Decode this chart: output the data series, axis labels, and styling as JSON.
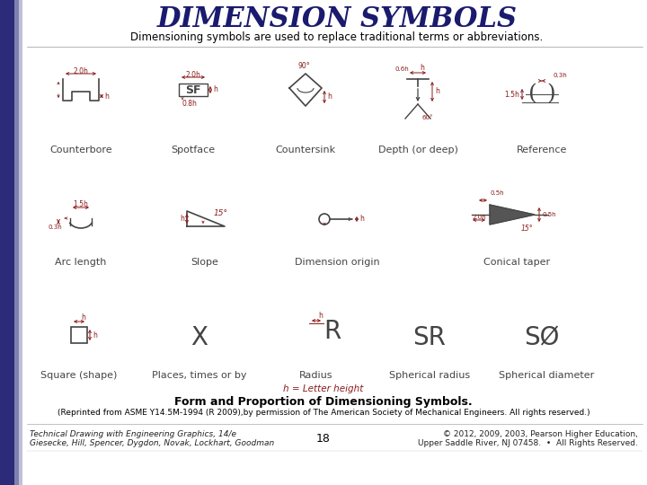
{
  "title": "DIMENSION SYMBOLS",
  "subtitle": "Dimensioning symbols are used to replace traditional terms or abbreviations.",
  "bg_color": "#ffffff",
  "title_color": "#1a1a6e",
  "subtitle_color": "#000000",
  "draw_color": "#8b1a1a",
  "line_color": "#444444",
  "caption_bold": "Form and Proportion of Dimensioning Symbols.",
  "caption_normal": "(Reprinted from ASME Y14.5M-1994 (R 2009),by permission of The American Society of Mechanical Engineers. All rights reserved.)",
  "footer_left_line1": "Technical Drawing with Engineering Graphics, 14/e",
  "footer_left_line2": "Giesecke, Hill, Spencer, Dygdon, Novak, Lockhart, Goodman",
  "footer_center": "18",
  "footer_right_line1": "© 2012, 2009, 2003, Pearson Higher Education,",
  "footer_right_line2": "Upper Saddle River, NJ 07458.  •  All Rights Reserved.",
  "left_bar_color": "#2b2b7a",
  "row1_labels": [
    "Counterbore",
    "Spotface",
    "Countersink",
    "Depth (or deep)",
    "Reference"
  ],
  "row2_labels": [
    "Arc length",
    "Slope",
    "Dimension origin",
    "Conical taper"
  ],
  "row3_labels": [
    "Square (shape)",
    "Places, times or by",
    "Radius",
    "Spherical radius",
    "Spherical diameter"
  ],
  "h_eq": "h = Letter height"
}
